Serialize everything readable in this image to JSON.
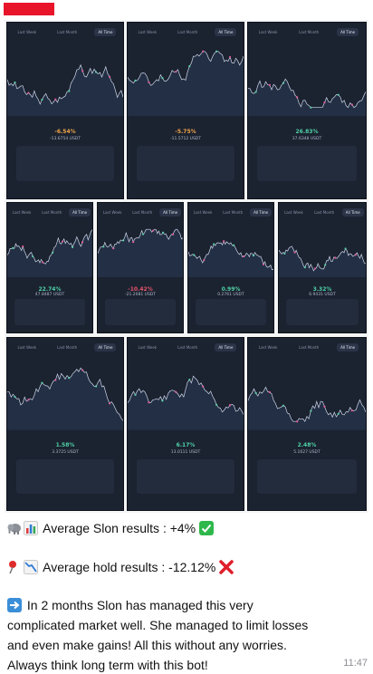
{
  "message": {
    "line1": "Average Slon results : +4%",
    "line2": "Average hold results : -12.12%",
    "paragraph": [
      "In 2 months Slon has managed this very",
      "complicated market well. She managed to limit losses",
      "and even make gains! All this without any worries.",
      "Always think long term with this bot!"
    ],
    "time": "11:47"
  },
  "icons": {
    "elephant": "elephant-icon",
    "bar_chart": "bar-chart-icon",
    "check": "check-mark-icon",
    "pin": "pin-icon",
    "down_chart": "chart-decreasing-icon",
    "cross": "cross-mark-icon",
    "arrow": "right-arrow-icon"
  },
  "colors": {
    "sender_bar": "#e8152a",
    "tile_bg": "#1b2230",
    "positive": "#4fd1a5",
    "negative": "#f0a64a",
    "loss_red": "#e8566b",
    "check_green": "#2eb84b",
    "cross_red": "#e01e2b"
  },
  "tiles": [
    {
      "pct": "-6.54%",
      "amt": "-13.6754 USDT",
      "kind": "negative",
      "tabs": [
        "Last Week",
        "Last Month",
        "All Time"
      ]
    },
    {
      "pct": "-5.75%",
      "amt": "-11.5712 USDT",
      "kind": "negative",
      "tabs": [
        "Last Week",
        "Last Month",
        "All Time"
      ]
    },
    {
      "pct": "26.83%",
      "amt": "37.6348 USDT",
      "kind": "positive",
      "tabs": [
        "Last Week",
        "Last Month",
        "All Time"
      ]
    },
    {
      "pct": "22.74%",
      "amt": "47.8487 USDT",
      "kind": "positive",
      "tabs": [
        "Last Week",
        "Last Month",
        "All Time"
      ]
    },
    {
      "pct": "-10.42%",
      "amt": "-21.2081 USDT",
      "kind": "loss",
      "tabs": [
        "Last Week",
        "Last Month",
        "All Time"
      ]
    },
    {
      "pct": "0.99%",
      "amt": "0.2761 USDT",
      "kind": "positive",
      "tabs": [
        "Last Week",
        "Last Month",
        "All Time"
      ]
    },
    {
      "pct": "3.32%",
      "amt": "6.9431 USDT",
      "kind": "positive",
      "tabs": [
        "Last Week",
        "Last Month",
        "All Time"
      ]
    },
    {
      "pct": "1.58%",
      "amt": "3.3725 USDT",
      "kind": "positive",
      "tabs": [
        "Last Week",
        "Last Month",
        "All Time"
      ]
    },
    {
      "pct": "6.17%",
      "amt": "13.0111 USDT",
      "kind": "positive",
      "tabs": [
        "Last Week",
        "Last Month",
        "All Time"
      ]
    },
    {
      "pct": "2.48%",
      "amt": "5.1627 USDT",
      "kind": "positive",
      "tabs": [
        "Last Week",
        "Last Month",
        "All Time"
      ]
    }
  ]
}
